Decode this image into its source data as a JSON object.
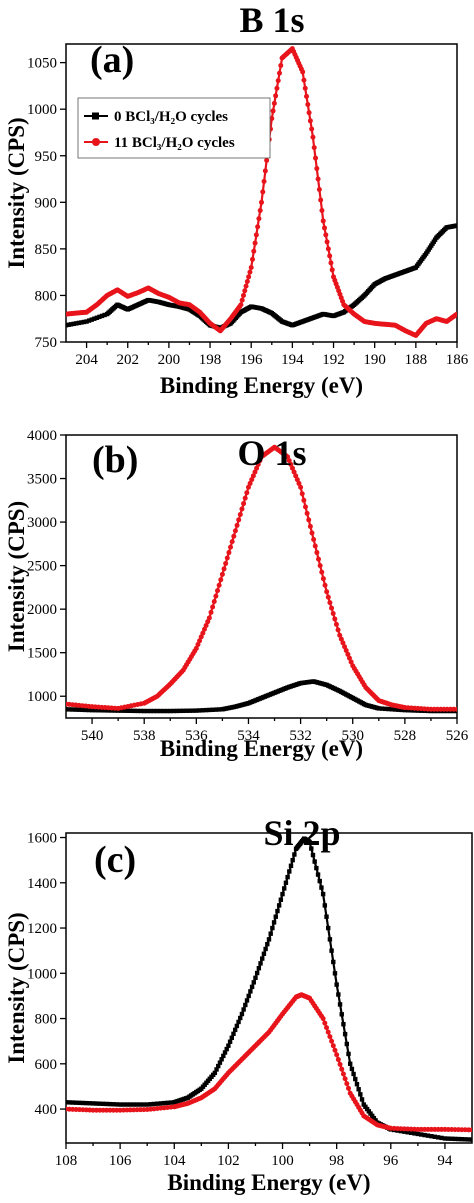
{
  "legend": {
    "placement": "top-left of panel (a)",
    "entries": [
      {
        "label": "0 BCl₃/H₂O cycles",
        "color": "#000000",
        "marker": "square"
      },
      {
        "label": "11 BCl₃/H₂O cycles",
        "color": "#e8141b",
        "marker": "circle"
      }
    ]
  },
  "chart_data": [
    {
      "type": "line",
      "panel_label": "(a)",
      "title": "B 1s",
      "xlabel": "Binding Energy (eV)",
      "ylabel": "Intensity (CPS)",
      "xlim": [
        205,
        186
      ],
      "ylim": [
        750,
        1070
      ],
      "xticks": [
        204,
        202,
        200,
        198,
        196,
        194,
        192,
        190,
        188,
        186
      ],
      "yticks": [
        750,
        800,
        850,
        900,
        950,
        1000,
        1050
      ],
      "grid": false,
      "series": [
        {
          "name": "0 BCl₃/H₂O cycles",
          "color": "#000000",
          "x": [
            205,
            204,
            203,
            202.5,
            202,
            201.5,
            201,
            200.5,
            200,
            199.5,
            199,
            198.5,
            198,
            197.5,
            197,
            196.5,
            196,
            195.5,
            195,
            194.5,
            194,
            193.5,
            193,
            192.5,
            192,
            191.5,
            191,
            190.5,
            190,
            189.5,
            189,
            188.5,
            188,
            187.5,
            187,
            186.5,
            186
          ],
          "y": [
            768,
            772,
            780,
            790,
            785,
            790,
            795,
            793,
            790,
            788,
            785,
            778,
            768,
            765,
            770,
            782,
            788,
            786,
            781,
            772,
            768,
            772,
            776,
            780,
            778,
            782,
            790,
            800,
            812,
            818,
            822,
            826,
            830,
            845,
            862,
            873,
            875
          ]
        },
        {
          "name": "11 BCl₃/H₂O cycles",
          "color": "#e8141b",
          "x": [
            205,
            204.5,
            204,
            203.5,
            203,
            202.5,
            202,
            201.5,
            201,
            200.5,
            200,
            199.5,
            199,
            198.5,
            198,
            197.5,
            197,
            196.5,
            196,
            195.5,
            195,
            194.5,
            194,
            193.5,
            193,
            192.5,
            192,
            191.5,
            191,
            190.5,
            190,
            189.5,
            189,
            188.5,
            188,
            187.5,
            187,
            186.5,
            186
          ],
          "y": [
            780,
            781,
            782,
            790,
            800,
            806,
            799,
            803,
            808,
            802,
            798,
            792,
            790,
            782,
            770,
            762,
            775,
            790,
            830,
            900,
            990,
            1055,
            1065,
            1040,
            970,
            880,
            820,
            790,
            780,
            772,
            770,
            769,
            768,
            762,
            757,
            770,
            775,
            772,
            780
          ]
        }
      ]
    },
    {
      "type": "line",
      "panel_label": "(b)",
      "title": "O 1s",
      "xlabel": "Binding Energy (eV)",
      "ylabel": "Intensity (CPS)",
      "xlim": [
        541,
        526
      ],
      "ylim": [
        750,
        4000
      ],
      "xticks": [
        540,
        538,
        536,
        534,
        532,
        530,
        528,
        526
      ],
      "yticks": [
        1000,
        1500,
        2000,
        2500,
        3000,
        3500,
        4000
      ],
      "grid": false,
      "series": [
        {
          "name": "0 BCl₃/H₂O cycles",
          "color": "#000000",
          "x": [
            541,
            540,
            539,
            538,
            537,
            536,
            535,
            534.5,
            534,
            533.5,
            533,
            532.5,
            532,
            531.5,
            531,
            530.5,
            530,
            529.5,
            529,
            528,
            527,
            526
          ],
          "y": [
            850,
            840,
            835,
            830,
            830,
            835,
            850,
            880,
            920,
            980,
            1040,
            1100,
            1150,
            1170,
            1130,
            1060,
            980,
            900,
            860,
            840,
            830,
            830
          ]
        },
        {
          "name": "11 BCl₃/H₂O cycles",
          "color": "#e8141b",
          "x": [
            541,
            540,
            539,
            538,
            537.5,
            537,
            536.5,
            536,
            535.5,
            535,
            534.5,
            534,
            533.5,
            533,
            532.5,
            532,
            531.5,
            531,
            530.5,
            530,
            529.5,
            529,
            528.5,
            528,
            527,
            526
          ],
          "y": [
            910,
            880,
            860,
            920,
            1000,
            1140,
            1300,
            1550,
            1900,
            2400,
            2900,
            3400,
            3750,
            3860,
            3750,
            3400,
            2800,
            2200,
            1700,
            1350,
            1100,
            950,
            900,
            870,
            850,
            850
          ]
        }
      ]
    },
    {
      "type": "line",
      "panel_label": "(c)",
      "title": "Si 2p",
      "xlabel": "Binding Energy (eV)",
      "ylabel": "Intensity (CPS)",
      "xlim": [
        108,
        93
      ],
      "ylim": [
        250,
        1620
      ],
      "xticks": [
        108,
        106,
        104,
        102,
        100,
        98,
        96,
        94
      ],
      "yticks": [
        400,
        600,
        800,
        1000,
        1200,
        1400,
        1600
      ],
      "grid": false,
      "series": [
        {
          "name": "0 BCl₃/H₂O cycles",
          "color": "#000000",
          "x": [
            108,
            107,
            106,
            105,
            104,
            103.5,
            103,
            102.5,
            102,
            101.5,
            101,
            100.5,
            100,
            99.5,
            99.2,
            99,
            98.5,
            98,
            97.5,
            97,
            96.5,
            96,
            95,
            94,
            93
          ],
          "y": [
            430,
            425,
            420,
            420,
            430,
            450,
            490,
            560,
            680,
            820,
            980,
            1150,
            1350,
            1550,
            1595,
            1580,
            1350,
            950,
            600,
            420,
            340,
            310,
            290,
            270,
            265
          ]
        },
        {
          "name": "11 BCl₃/H₂O cycles",
          "color": "#e8141b",
          "x": [
            108,
            107,
            106,
            105,
            104,
            103.5,
            103,
            102.5,
            102,
            101.5,
            101,
            100.5,
            100,
            99.5,
            99.3,
            99,
            98.5,
            98,
            97.5,
            97,
            96.5,
            96,
            95,
            94,
            93
          ],
          "y": [
            400,
            395,
            395,
            398,
            410,
            425,
            450,
            490,
            560,
            620,
            680,
            740,
            820,
            895,
            905,
            890,
            800,
            640,
            470,
            370,
            330,
            315,
            310,
            310,
            308
          ]
        }
      ]
    }
  ]
}
